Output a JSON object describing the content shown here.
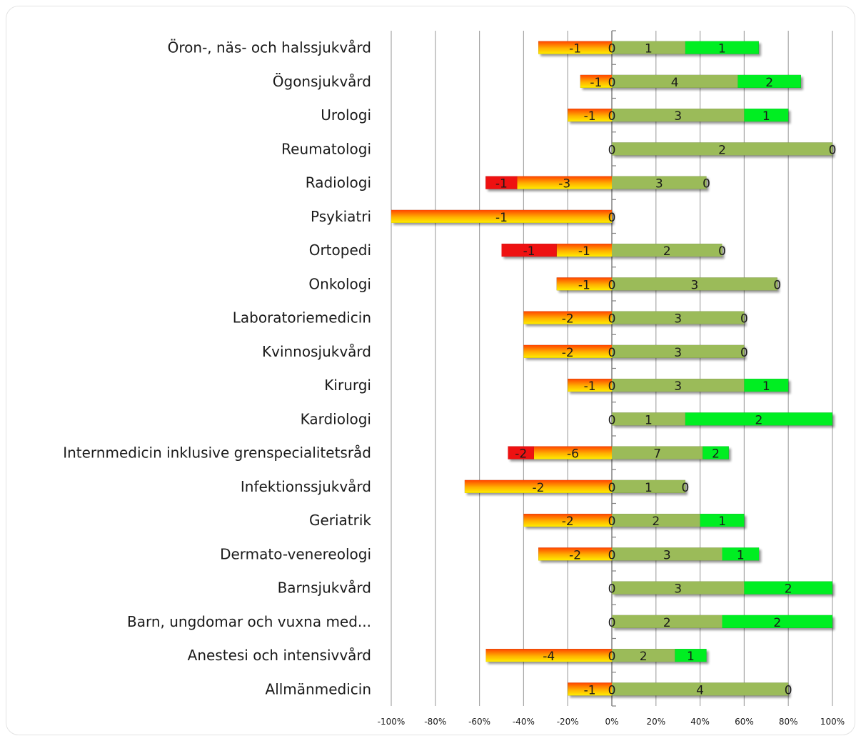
{
  "chart_data": {
    "type": "bar",
    "orientation": "horizontal",
    "stacking": "diverging-100-percent",
    "xlim": [
      -100,
      100
    ],
    "x_tick_labels": [
      "-100%",
      "-80%",
      "-60%",
      "-40%",
      "-20%",
      "0%",
      "20%",
      "40%",
      "60%",
      "80%",
      "100%"
    ],
    "grid": true,
    "legend": "none",
    "colors": {
      "neg_strong": "#ee1111",
      "neg_mild_top": "#ff4400",
      "neg_mild_bottom": "#ffee00",
      "zero": "#ffffff",
      "pos_mild": "#9bbb59",
      "pos_strong": "#00ee22"
    },
    "series_keys": [
      "neg_strong",
      "neg_mild",
      "zero",
      "pos_mild",
      "pos_strong"
    ],
    "categories": [
      {
        "label": "Öron-, näs- och halssjukvård",
        "segments": [
          {
            "key": "neg_mild",
            "label": "-1",
            "value": 33.3
          },
          {
            "key": "zero",
            "label": "0",
            "value": 0
          },
          {
            "key": "pos_mild",
            "label": "1",
            "value": 33.3
          },
          {
            "key": "pos_strong",
            "label": "1",
            "value": 33.3
          }
        ]
      },
      {
        "label": "Ögonsjukvård",
        "segments": [
          {
            "key": "neg_mild",
            "label": "-1",
            "value": 14.3
          },
          {
            "key": "zero",
            "label": "0",
            "value": 0
          },
          {
            "key": "pos_mild",
            "label": "4",
            "value": 57.1
          },
          {
            "key": "pos_strong",
            "label": "2",
            "value": 28.6
          }
        ]
      },
      {
        "label": "Urologi",
        "segments": [
          {
            "key": "neg_mild",
            "label": "-1",
            "value": 20
          },
          {
            "key": "zero",
            "label": "0",
            "value": 0
          },
          {
            "key": "pos_mild",
            "label": "3",
            "value": 60
          },
          {
            "key": "pos_strong",
            "label": "1",
            "value": 20
          }
        ]
      },
      {
        "label": "Reumatologi",
        "segments": [
          {
            "key": "zero",
            "label": "0",
            "value": 0
          },
          {
            "key": "pos_mild",
            "label": "2",
            "value": 100
          },
          {
            "key": "pos_strong",
            "label": "0",
            "value": 0
          }
        ]
      },
      {
        "label": "Radiologi",
        "segments": [
          {
            "key": "neg_strong",
            "label": "-1",
            "value": 14.3
          },
          {
            "key": "neg_mild",
            "label": "-3",
            "value": 42.9
          },
          {
            "key": "pos_mild",
            "label": "3",
            "value": 42.9
          },
          {
            "key": "pos_strong",
            "label": "0",
            "value": 0
          }
        ]
      },
      {
        "label": "Psykiatri",
        "segments": [
          {
            "key": "neg_mild",
            "label": "-1",
            "value": 100
          },
          {
            "key": "zero",
            "label": "0",
            "value": 0
          }
        ]
      },
      {
        "label": "Ortopedi",
        "segments": [
          {
            "key": "neg_strong",
            "label": "-1",
            "value": 25
          },
          {
            "key": "neg_mild",
            "label": "-1",
            "value": 25
          },
          {
            "key": "pos_mild",
            "label": "2",
            "value": 50
          },
          {
            "key": "pos_strong",
            "label": "0",
            "value": 0
          }
        ]
      },
      {
        "label": "Onkologi",
        "segments": [
          {
            "key": "neg_mild",
            "label": "-1",
            "value": 25
          },
          {
            "key": "zero",
            "label": "0",
            "value": 0
          },
          {
            "key": "pos_mild",
            "label": "3",
            "value": 75
          },
          {
            "key": "pos_strong",
            "label": "0",
            "value": 0
          }
        ]
      },
      {
        "label": "Laboratoriemedicin",
        "segments": [
          {
            "key": "neg_mild",
            "label": "-2",
            "value": 40
          },
          {
            "key": "zero",
            "label": "0",
            "value": 0
          },
          {
            "key": "pos_mild",
            "label": "3",
            "value": 60
          },
          {
            "key": "pos_strong",
            "label": "0",
            "value": 0
          }
        ]
      },
      {
        "label": "Kvinnosjukvård",
        "segments": [
          {
            "key": "neg_mild",
            "label": "-2",
            "value": 40
          },
          {
            "key": "zero",
            "label": "0",
            "value": 0
          },
          {
            "key": "pos_mild",
            "label": "3",
            "value": 60
          },
          {
            "key": "pos_strong",
            "label": "0",
            "value": 0
          }
        ]
      },
      {
        "label": "Kirurgi",
        "segments": [
          {
            "key": "neg_mild",
            "label": "-1",
            "value": 20
          },
          {
            "key": "zero",
            "label": "0",
            "value": 0
          },
          {
            "key": "pos_mild",
            "label": "3",
            "value": 60
          },
          {
            "key": "pos_strong",
            "label": "1",
            "value": 20
          }
        ]
      },
      {
        "label": "Kardiologi",
        "segments": [
          {
            "key": "zero",
            "label": "0",
            "value": 0
          },
          {
            "key": "pos_mild",
            "label": "1",
            "value": 33.3
          },
          {
            "key": "pos_strong",
            "label": "2",
            "value": 66.7
          }
        ]
      },
      {
        "label": "Internmedicin inklusive grenspecialitetsråd",
        "segments": [
          {
            "key": "neg_strong",
            "label": "-2",
            "value": 11.8
          },
          {
            "key": "neg_mild",
            "label": "-6",
            "value": 35.3
          },
          {
            "key": "pos_mild",
            "label": "7",
            "value": 41.2
          },
          {
            "key": "pos_strong",
            "label": "2",
            "value": 11.8
          }
        ]
      },
      {
        "label": "Infektionssjukvård",
        "segments": [
          {
            "key": "neg_mild",
            "label": "-2",
            "value": 66.7
          },
          {
            "key": "zero",
            "label": "0",
            "value": 0
          },
          {
            "key": "pos_mild",
            "label": "1",
            "value": 33.3
          },
          {
            "key": "pos_strong",
            "label": "0",
            "value": 0
          }
        ]
      },
      {
        "label": "Geriatrik",
        "segments": [
          {
            "key": "neg_mild",
            "label": "-2",
            "value": 40
          },
          {
            "key": "zero",
            "label": "0",
            "value": 0
          },
          {
            "key": "pos_mild",
            "label": "2",
            "value": 40
          },
          {
            "key": "pos_strong",
            "label": "1",
            "value": 20
          }
        ]
      },
      {
        "label": "Dermato-venereologi",
        "segments": [
          {
            "key": "neg_mild",
            "label": "-2",
            "value": 33.3
          },
          {
            "key": "zero",
            "label": "0",
            "value": 0
          },
          {
            "key": "pos_mild",
            "label": "3",
            "value": 50
          },
          {
            "key": "pos_strong",
            "label": "1",
            "value": 16.7
          }
        ]
      },
      {
        "label": "Barnsjukvård",
        "segments": [
          {
            "key": "zero",
            "label": "0",
            "value": 0
          },
          {
            "key": "pos_mild",
            "label": "3",
            "value": 60
          },
          {
            "key": "pos_strong",
            "label": "2",
            "value": 40
          }
        ]
      },
      {
        "label": "Barn, ungdomar och vuxna med...",
        "segments": [
          {
            "key": "zero",
            "label": "0",
            "value": 0
          },
          {
            "key": "pos_mild",
            "label": "2",
            "value": 50
          },
          {
            "key": "pos_strong",
            "label": "2",
            "value": 50
          }
        ]
      },
      {
        "label": "Anestesi och intensivvård",
        "segments": [
          {
            "key": "neg_mild",
            "label": "-4",
            "value": 57.1
          },
          {
            "key": "zero",
            "label": "0",
            "value": 0
          },
          {
            "key": "pos_mild",
            "label": "2",
            "value": 28.6
          },
          {
            "key": "pos_strong",
            "label": "1",
            "value": 14.3
          }
        ]
      },
      {
        "label": "Allmänmedicin",
        "segments": [
          {
            "key": "neg_mild",
            "label": "-1",
            "value": 20
          },
          {
            "key": "zero",
            "label": "0",
            "value": 0
          },
          {
            "key": "pos_mild",
            "label": "4",
            "value": 80
          },
          {
            "key": "pos_strong",
            "label": "0",
            "value": 0
          }
        ]
      }
    ]
  }
}
